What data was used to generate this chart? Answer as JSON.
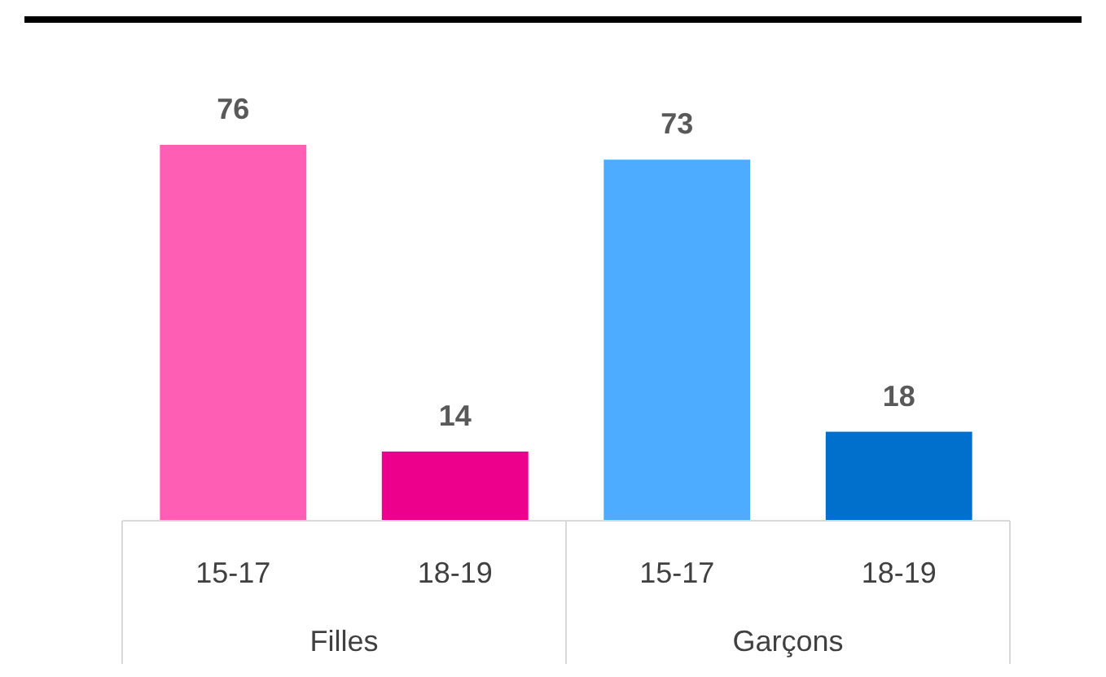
{
  "chart_data": {
    "type": "bar",
    "categories": [
      "15-17",
      "18-19",
      "15-17",
      "18-19"
    ],
    "values": [
      76,
      14,
      73,
      18
    ],
    "colors": [
      "#ff5eb5",
      "#ec008c",
      "#4dacff",
      "#0070cc"
    ],
    "data_labels": true,
    "annotations": [
      "Filles",
      "Garçons"
    ]
  }
}
